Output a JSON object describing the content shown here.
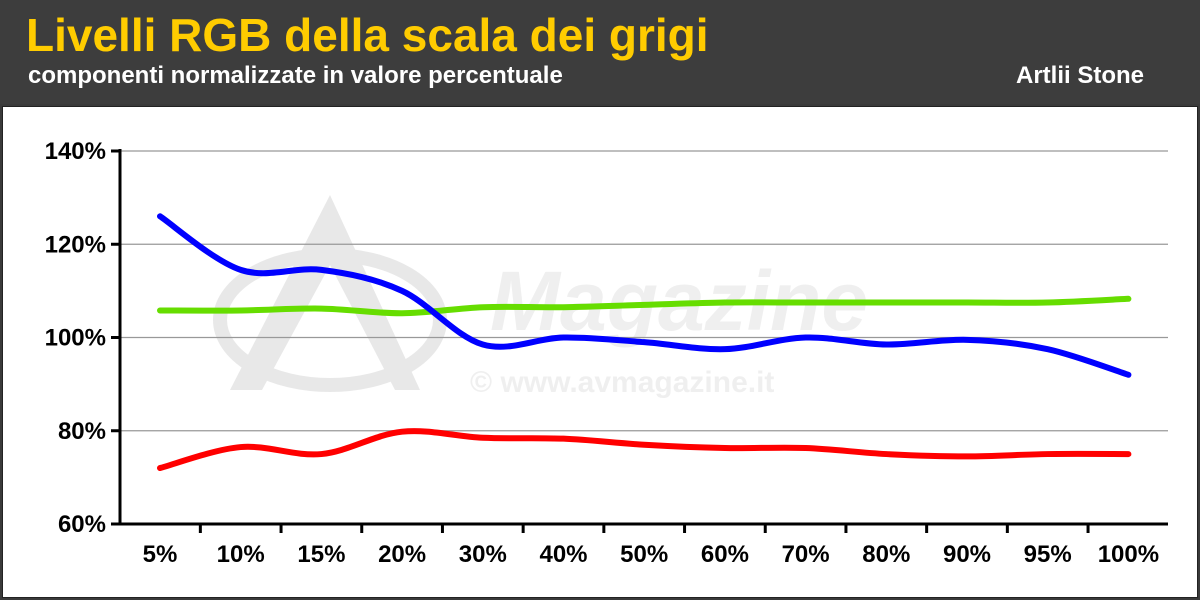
{
  "header": {
    "title": "Livelli RGB della scala dei grigi",
    "subtitle": "componenti normalizzate in valore percentuale",
    "product": "Artlii Stone"
  },
  "watermark": {
    "brand": "Magazine",
    "url": "© www.avmagazine.it"
  },
  "colors": {
    "title": "#ffcc00",
    "header_bg": "#3d3d3d",
    "red": "#ff0000",
    "green": "#66dd00",
    "blue": "#0000ff"
  },
  "chart_data": {
    "type": "line",
    "title": "Livelli RGB della scala dei grigi",
    "subtitle": "componenti normalizzate in valore percentuale",
    "xlabel": "",
    "ylabel": "",
    "categories": [
      "5%",
      "10%",
      "15%",
      "20%",
      "30%",
      "40%",
      "50%",
      "60%",
      "70%",
      "80%",
      "90%",
      "95%",
      "100%"
    ],
    "y_ticks": [
      "60%",
      "80%",
      "100%",
      "120%",
      "140%"
    ],
    "ylim": [
      60,
      140
    ],
    "grid": true,
    "legend": "none",
    "series": [
      {
        "color": "#ff0000",
        "values": [
          72,
          76.5,
          75,
          79.8,
          78.5,
          78.3,
          77,
          76.3,
          76.3,
          75,
          74.5,
          75,
          75
        ]
      },
      {
        "color": "#66dd00",
        "values": [
          105.8,
          105.8,
          106.2,
          105.2,
          106.5,
          106.5,
          107,
          107.5,
          107.5,
          107.5,
          107.5,
          107.5,
          108.3
        ]
      },
      {
        "color": "#0000ff",
        "values": [
          126,
          114.5,
          114.5,
          110,
          98.5,
          100,
          99,
          97.5,
          100,
          98.5,
          99.5,
          97.5,
          92
        ]
      }
    ]
  }
}
